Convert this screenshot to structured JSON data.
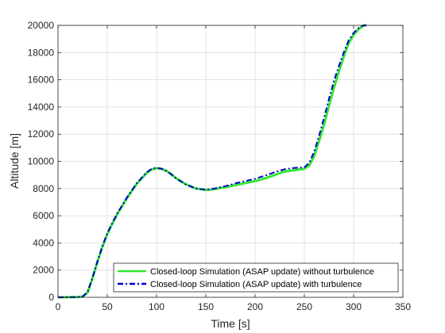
{
  "chart_data": {
    "type": "line",
    "title": "",
    "xlabel": "Time [s]",
    "ylabel": "Altitude [m]",
    "xlim": [
      0,
      350
    ],
    "ylim": [
      0,
      20000
    ],
    "xticks": [
      0,
      50,
      100,
      150,
      200,
      250,
      300,
      350
    ],
    "yticks": [
      0,
      2000,
      4000,
      6000,
      8000,
      10000,
      12000,
      14000,
      16000,
      18000,
      20000
    ],
    "grid": true,
    "legend_position": "bottom-right",
    "series": [
      {
        "name": "Closed-loop Simulation (ASAP update) without turbulence",
        "color": "#33e633",
        "style": "solid",
        "x": [
          0,
          20,
          25,
          30,
          35,
          40,
          45,
          50,
          55,
          60,
          70,
          80,
          90,
          95,
          100,
          105,
          110,
          115,
          120,
          130,
          140,
          150,
          155,
          160,
          170,
          180,
          190,
          200,
          210,
          220,
          230,
          240,
          250,
          255,
          260,
          265,
          270,
          275,
          280,
          285,
          290,
          295,
          300,
          305,
          310,
          313
        ],
        "y": [
          0,
          20,
          60,
          350,
          1400,
          2600,
          3700,
          4650,
          5400,
          6100,
          7300,
          8350,
          9150,
          9400,
          9500,
          9450,
          9300,
          9050,
          8750,
          8300,
          8000,
          7900,
          7920,
          7980,
          8100,
          8250,
          8400,
          8550,
          8750,
          9000,
          9250,
          9350,
          9450,
          9700,
          10400,
          11500,
          12700,
          14100,
          15400,
          16600,
          17700,
          18700,
          19300,
          19700,
          20000,
          20000
        ]
      },
      {
        "name": "Closed-loop Simulation (ASAP update) with turbulence",
        "color": "#0000cc",
        "style": "dash-dot",
        "x": [
          0,
          20,
          25,
          30,
          35,
          40,
          45,
          50,
          55,
          60,
          70,
          80,
          90,
          95,
          100,
          105,
          110,
          115,
          120,
          130,
          140,
          150,
          155,
          160,
          170,
          180,
          190,
          200,
          210,
          220,
          230,
          240,
          250,
          255,
          260,
          265,
          270,
          275,
          280,
          285,
          290,
          295,
          300,
          305,
          310,
          313
        ],
        "y": [
          0,
          20,
          60,
          380,
          1450,
          2650,
          3750,
          4700,
          5450,
          6150,
          7350,
          8400,
          9200,
          9450,
          9520,
          9460,
          9300,
          9040,
          8740,
          8290,
          8000,
          7920,
          7950,
          8020,
          8180,
          8380,
          8550,
          8720,
          8950,
          9200,
          9420,
          9520,
          9560,
          9900,
          10700,
          11900,
          13200,
          14600,
          15900,
          17000,
          18000,
          18900,
          19450,
          19800,
          20000,
          20000
        ]
      }
    ]
  }
}
